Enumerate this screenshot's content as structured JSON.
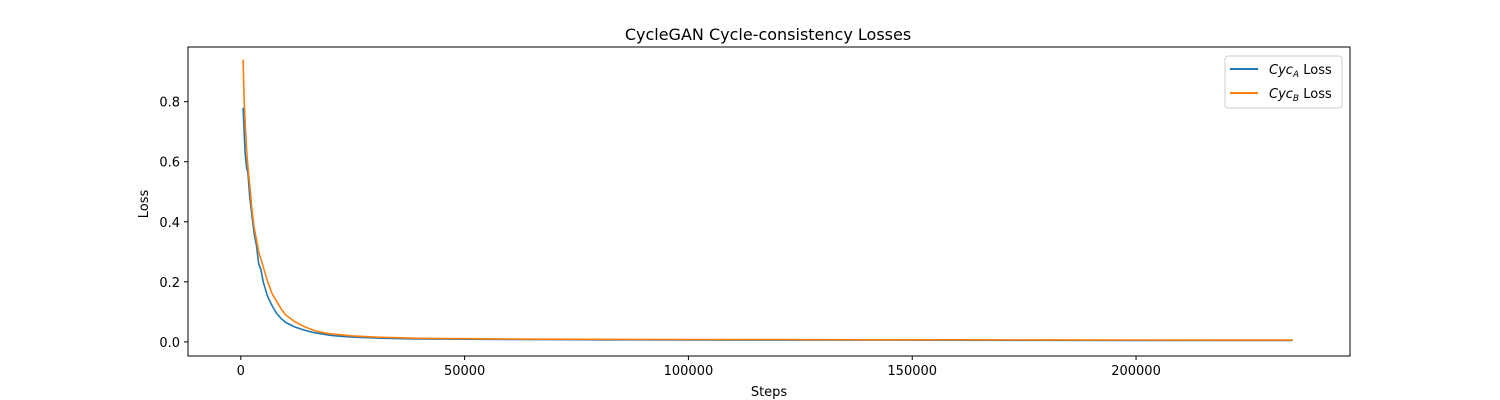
{
  "chart_data": {
    "type": "line",
    "title": "CycleGAN Cycle-consistency Losses",
    "xlabel": "Steps",
    "ylabel": "Loss",
    "xlim": [
      -11800,
      247800
    ],
    "ylim": [
      -0.047,
      0.982
    ],
    "xticks": [
      0,
      50000,
      100000,
      150000,
      200000
    ],
    "xtick_labels": [
      "0",
      "50000",
      "100000",
      "150000",
      "200000"
    ],
    "yticks": [
      0.0,
      0.2,
      0.4,
      0.6,
      0.8
    ],
    "ytick_labels": [
      "0.0",
      "0.2",
      "0.4",
      "0.6",
      "0.8"
    ],
    "grid": false,
    "legend_position": "top-right",
    "series": [
      {
        "name": "Cyc_A Loss",
        "legend_base": "Cyc",
        "legend_sub": "A",
        "legend_suffix": " Loss",
        "color": "#1f77b4",
        "x": [
          500,
          800,
          1000,
          1300,
          1600,
          2000,
          2500,
          3000,
          3500,
          4000,
          4500,
          5000,
          6000,
          7000,
          8000,
          9000,
          10000,
          12000,
          14000,
          16000,
          18000,
          20000,
          22000,
          25000,
          30000,
          35000,
          40000,
          50000,
          60000,
          70000,
          80000,
          100000,
          120000,
          140000,
          160000,
          180000,
          200000,
          220000,
          235000
        ],
        "y": [
          0.78,
          0.68,
          0.62,
          0.58,
          0.56,
          0.48,
          0.42,
          0.36,
          0.32,
          0.26,
          0.24,
          0.2,
          0.15,
          0.12,
          0.095,
          0.078,
          0.065,
          0.05,
          0.04,
          0.032,
          0.027,
          0.022,
          0.019,
          0.016,
          0.013,
          0.011,
          0.01,
          0.009,
          0.008,
          0.0075,
          0.007,
          0.0065,
          0.006,
          0.0058,
          0.0055,
          0.0053,
          0.005,
          0.0048,
          0.0045
        ]
      },
      {
        "name": "Cyc_B Loss",
        "legend_base": "Cyc",
        "legend_sub": "B",
        "legend_suffix": " Loss",
        "color": "#ff7f0e",
        "x": [
          500,
          700,
          1000,
          1300,
          1600,
          2000,
          2500,
          3000,
          3500,
          4000,
          5000,
          6000,
          7000,
          8000,
          9000,
          10000,
          12000,
          14000,
          16000,
          18000,
          20000,
          22000,
          25000,
          30000,
          35000,
          40000,
          50000,
          60000,
          70000,
          80000,
          100000,
          120000,
          140000,
          160000,
          180000,
          200000,
          220000,
          235000
        ],
        "y": [
          0.94,
          0.82,
          0.72,
          0.64,
          0.58,
          0.52,
          0.44,
          0.38,
          0.34,
          0.3,
          0.25,
          0.2,
          0.16,
          0.135,
          0.11,
          0.09,
          0.068,
          0.052,
          0.04,
          0.032,
          0.027,
          0.024,
          0.02,
          0.016,
          0.014,
          0.012,
          0.0105,
          0.0095,
          0.009,
          0.0085,
          0.008,
          0.0075,
          0.007,
          0.0068,
          0.0065,
          0.0062,
          0.006,
          0.0058
        ]
      }
    ]
  }
}
